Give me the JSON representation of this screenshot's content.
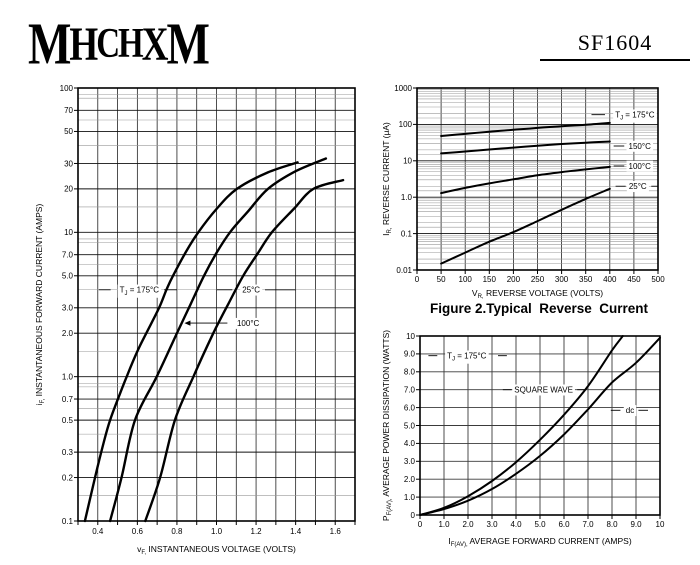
{
  "header": {
    "logo": "MHCHXM",
    "part_number": "SF1604"
  },
  "colors": {
    "ink": "#000000",
    "grid_major": "#111111",
    "grid_minor": "#999999",
    "grid_vertical": "#222222",
    "background": "#ffffff"
  },
  "chart_data": [
    {
      "id": "fig1",
      "type": "line",
      "title": "",
      "xlabel": "v_{F,} INSTANTANEOUS VOLTAGE (VOLTS)",
      "ylabel": "i_{F,} INSTANTANEOUS FORWARD CURRENT (AMPS)",
      "xscale": "linear",
      "yscale": "log",
      "xlim": [
        0.3,
        1.7
      ],
      "ylim": [
        0.1,
        100
      ],
      "x_grid_step": 0.1,
      "xticks": [
        [
          0.4,
          "0.4"
        ],
        [
          0.6,
          "0.6"
        ],
        [
          0.8,
          "0.8"
        ],
        [
          1.0,
          "1.0"
        ],
        [
          1.2,
          "1.2"
        ],
        [
          1.4,
          "1.4"
        ],
        [
          1.6,
          "1.6"
        ]
      ],
      "yticks": [
        [
          100,
          "100"
        ],
        [
          70,
          "70"
        ],
        [
          50,
          "50"
        ],
        [
          30,
          "30"
        ],
        [
          20,
          "20"
        ],
        [
          10,
          "10"
        ],
        [
          7,
          "7.0"
        ],
        [
          5,
          "5.0"
        ],
        [
          3,
          "3.0"
        ],
        [
          2,
          "2.0"
        ],
        [
          1,
          "1.0"
        ],
        [
          0.7,
          "0.7"
        ],
        [
          0.5,
          "0.5"
        ],
        [
          0.3,
          "0.3"
        ],
        [
          0.2,
          "0.2"
        ],
        [
          0.1,
          "0.1"
        ]
      ],
      "y_major_mult": [
        1,
        2,
        3,
        5,
        7
      ],
      "y_minor_mult": [
        1.5,
        4,
        6,
        8.5,
        9
      ],
      "grid": true,
      "legend_position": "inline-annotations",
      "series": [
        {
          "name": "T_{J} = 175°C",
          "points": [
            [
              0.335,
              0.1
            ],
            [
              0.386,
              0.2
            ],
            [
              0.43,
              0.35
            ],
            [
              0.462,
              0.5
            ],
            [
              0.51,
              0.75
            ],
            [
              0.546,
              1.0
            ],
            [
              0.6,
              1.5
            ],
            [
              0.645,
              2.0
            ],
            [
              0.71,
              3.0
            ],
            [
              0.747,
              4.0
            ],
            [
              0.78,
              5.0
            ],
            [
              0.85,
              7.5
            ],
            [
              0.908,
              10
            ],
            [
              1.0,
              14.5
            ],
            [
              1.103,
              20
            ],
            [
              1.26,
              26
            ],
            [
              1.41,
              30.5
            ]
          ]
        },
        {
          "name": "100°C",
          "points": [
            [
              0.462,
              0.1
            ],
            [
              0.52,
              0.2
            ],
            [
              0.588,
              0.5
            ],
            [
              0.698,
              1.0
            ],
            [
              0.8,
              2.0
            ],
            [
              0.87,
              3.2
            ],
            [
              0.937,
              5.0
            ],
            [
              1.0,
              7.2
            ],
            [
              1.068,
              10
            ],
            [
              1.16,
              14
            ],
            [
              1.26,
              20
            ],
            [
              1.4,
              26.5
            ],
            [
              1.553,
              32.5
            ]
          ]
        },
        {
          "name": "25°C",
          "points": [
            [
              0.64,
              0.1
            ],
            [
              0.715,
              0.2
            ],
            [
              0.79,
              0.5
            ],
            [
              0.883,
              1.0
            ],
            [
              0.984,
              2.0
            ],
            [
              1.06,
              3.2
            ],
            [
              1.135,
              5.0
            ],
            [
              1.21,
              7.2
            ],
            [
              1.28,
              10
            ],
            [
              1.39,
              14.5
            ],
            [
              1.49,
              20
            ],
            [
              1.64,
              23
            ]
          ]
        }
      ],
      "annotations": [
        {
          "text": "T_{J} = 175°C",
          "x": 0.61,
          "y": 4.0,
          "dash_left": [
            0.405,
            0.465
          ],
          "dash_right": [
            0.735,
            0.8
          ]
        },
        {
          "text": "25°C",
          "x": 1.175,
          "y": 4.0,
          "dash_left": [
            1.0,
            1.08
          ],
          "dash_right": [
            1.245,
            1.4
          ]
        },
        {
          "text": "100°C",
          "x": 1.16,
          "y": 2.35,
          "arrow_from": [
            1.055,
            2.35
          ],
          "arrow_to": [
            0.838,
            2.35
          ]
        }
      ]
    },
    {
      "id": "fig2",
      "type": "line",
      "caption": "Figure 2.Typical  Reverse  Current",
      "xlabel": "V_{R,} REVERSE VOLTAGE (VOLTS)",
      "ylabel": "I_{R,} REVERSE CURRENT (μA)",
      "xscale": "linear",
      "yscale": "log",
      "xlim": [
        0,
        500
      ],
      "ylim": [
        0.01,
        1000
      ],
      "x_grid_step": 50,
      "xticks": [
        [
          0,
          "0"
        ],
        [
          50,
          "50"
        ],
        [
          100,
          "100"
        ],
        [
          150,
          "150"
        ],
        [
          200,
          "200"
        ],
        [
          250,
          "250"
        ],
        [
          300,
          "300"
        ],
        [
          350,
          "350"
        ],
        [
          400,
          "400"
        ],
        [
          450,
          "450"
        ],
        [
          500,
          "500"
        ]
      ],
      "yticks": [
        [
          1000,
          "1000"
        ],
        [
          100,
          "100"
        ],
        [
          10,
          "10"
        ],
        [
          1,
          "1.0"
        ],
        [
          0.1,
          "0.1"
        ],
        [
          0.01,
          "0.01"
        ]
      ],
      "y_major_mult": [
        1
      ],
      "y_minor_mult": [
        1.5,
        2,
        3,
        4,
        5,
        6,
        7,
        8,
        9
      ],
      "grid": true,
      "legend_position": "inline-annotations",
      "series": [
        {
          "name": "T_{J} = 175°C",
          "points": [
            [
              50,
              48
            ],
            [
              100,
              55
            ],
            [
              150,
              63
            ],
            [
              200,
              71
            ],
            [
              250,
              80
            ],
            [
              300,
              89
            ],
            [
              350,
              98
            ],
            [
              400,
              110
            ]
          ]
        },
        {
          "name": "150°C",
          "points": [
            [
              50,
              16
            ],
            [
              100,
              18
            ],
            [
              150,
              20.5
            ],
            [
              200,
              23
            ],
            [
              250,
              26
            ],
            [
              300,
              29
            ],
            [
              350,
              31.5
            ],
            [
              400,
              34
            ]
          ]
        },
        {
          "name": "100°C",
          "points": [
            [
              50,
              1.3
            ],
            [
              100,
              1.8
            ],
            [
              150,
              2.4
            ],
            [
              200,
              3.1
            ],
            [
              250,
              4.0
            ],
            [
              300,
              4.9
            ],
            [
              350,
              5.8
            ],
            [
              400,
              6.8
            ]
          ]
        },
        {
          "name": "25°C",
          "points": [
            [
              50,
              0.015
            ],
            [
              100,
              0.03
            ],
            [
              150,
              0.06
            ],
            [
              200,
              0.11
            ],
            [
              250,
              0.22
            ],
            [
              300,
              0.45
            ],
            [
              350,
              0.9
            ],
            [
              400,
              1.7
            ]
          ]
        }
      ],
      "annotations": [
        {
          "text": "T_{J} = 175°C",
          "x": 452,
          "y": 185,
          "dash_left": [
            362,
            390
          ]
        },
        {
          "text": "150°C",
          "x": 462,
          "y": 25.5,
          "dash_left": [
            408,
            430
          ]
        },
        {
          "text": "100°C",
          "x": 462,
          "y": 7.2,
          "dash_left": [
            408,
            430
          ]
        },
        {
          "text": "25°C",
          "x": 458,
          "y": 2.0,
          "dash_left": [
            412,
            433
          ],
          "dash_right": [
            486,
            500
          ]
        }
      ]
    },
    {
      "id": "fig3",
      "type": "line",
      "xlabel": "I_{F(AV),} AVERAGE FORWARD CURRENT (AMPS)",
      "ylabel": "P_{F(AV),} AVERAGE POWER DISSIPATION (WATTS)",
      "xscale": "linear",
      "yscale": "linear",
      "xlim": [
        0,
        10
      ],
      "ylim": [
        0,
        10
      ],
      "x_grid_step": 1,
      "y_grid_step": 1,
      "xticks": [
        [
          0,
          "0"
        ],
        [
          1,
          "1.0"
        ],
        [
          2,
          "2.0"
        ],
        [
          3,
          "3.0"
        ],
        [
          4,
          "4.0"
        ],
        [
          5,
          "5.0"
        ],
        [
          6,
          "6.0"
        ],
        [
          7,
          "7.0"
        ],
        [
          8,
          "8.0"
        ],
        [
          9,
          "9.0"
        ],
        [
          10,
          "10"
        ]
      ],
      "yticks": [
        [
          10,
          "10"
        ],
        [
          9,
          "9.0"
        ],
        [
          8,
          "8.0"
        ],
        [
          7,
          "7.0"
        ],
        [
          6,
          "6.0"
        ],
        [
          5,
          "5.0"
        ],
        [
          4,
          "4.0"
        ],
        [
          3,
          "3.0"
        ],
        [
          2,
          "2.0"
        ],
        [
          1,
          "1.0"
        ],
        [
          0,
          "0"
        ]
      ],
      "grid": true,
      "legend_position": "inline-annotations",
      "series": [
        {
          "name": "SQUARE WAVE",
          "points": [
            [
              0,
              0
            ],
            [
              1,
              0.4
            ],
            [
              2,
              1.05
            ],
            [
              3,
              1.9
            ],
            [
              4,
              2.95
            ],
            [
              5,
              4.2
            ],
            [
              6,
              5.6
            ],
            [
              7,
              7.2
            ],
            [
              8,
              9.2
            ],
            [
              8.45,
              10
            ]
          ]
        },
        {
          "name": "dc",
          "points": [
            [
              0,
              0
            ],
            [
              1,
              0.33
            ],
            [
              2,
              0.8
            ],
            [
              3,
              1.45
            ],
            [
              4,
              2.3
            ],
            [
              5,
              3.3
            ],
            [
              6,
              4.5
            ],
            [
              7,
              5.9
            ],
            [
              8,
              7.4
            ],
            [
              9,
              8.5
            ],
            [
              10,
              9.9
            ]
          ]
        }
      ],
      "annotations": [
        {
          "text": "T_{J} = 175°C",
          "x": 1.95,
          "y": 8.9,
          "dash_left": [
            0.35,
            0.72
          ],
          "dash_right": [
            3.25,
            3.62
          ]
        },
        {
          "text": "SQUARE WAVE",
          "x": 5.15,
          "y": 7.0,
          "dash_left": [
            3.45,
            3.82
          ],
          "dash_right": [
            6.55,
            6.88
          ]
        },
        {
          "text": "dc",
          "x": 8.75,
          "y": 5.85,
          "dash_left": [
            7.95,
            8.35
          ],
          "dash_right": [
            9.1,
            9.5
          ]
        }
      ]
    }
  ]
}
